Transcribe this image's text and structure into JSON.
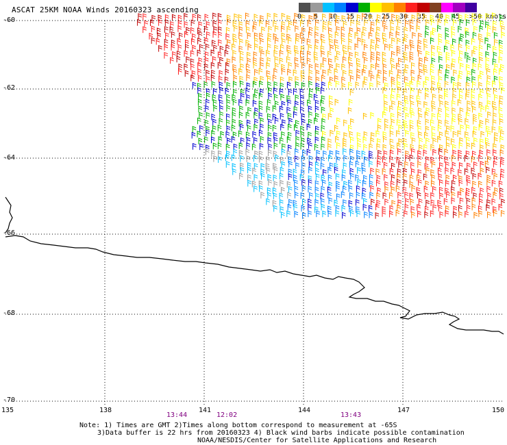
{
  "title": "ASCAT 25KM NOAA Winds 20160323 ascending",
  "legend": {
    "labels": [
      "0",
      "5",
      "10",
      "15",
      "20",
      "25",
      "30",
      "35",
      "40",
      "45",
      ">50 knots"
    ],
    "colors": [
      "#505050",
      "#9a9a9a",
      "#00c0ff",
      "#0080ff",
      "#0000d0",
      "#00b000",
      "#ffff00",
      "#ffc000",
      "#ff8000",
      "#ff2020",
      "#c00000",
      "#804020",
      "#ff00ff",
      "#a000c0",
      "#4000a0"
    ]
  },
  "axes": {
    "y_ticks": [
      "-60",
      "-62",
      "-64",
      "-66",
      "-68",
      "-70"
    ],
    "x_ticks": [
      "135",
      "138",
      "141",
      "144",
      "147",
      "150"
    ]
  },
  "times": [
    "13:44",
    "12:02",
    "13:43"
  ],
  "notes": [
    "Note: 1) Times are GMT 2)Times along bottom correspond to measurement at -65S",
    "3)Data buffer is 22 hrs from 20160323 4) Black wind barbs indicate possible contamination",
    "NOAA/NESDIS/Center for Satellite Applications and Research"
  ],
  "wind_field": [
    {
      "region": "north-west",
      "speed_knots": 35
    },
    {
      "region": "north",
      "speed_knots": 28
    },
    {
      "region": "north-east",
      "speed_knots": 22
    },
    {
      "region": "central-east",
      "speed_knots": 25
    },
    {
      "region": "central-west",
      "speed_knots": 18
    },
    {
      "region": "south-central",
      "speed_knots": 12
    },
    {
      "region": "south-east",
      "speed_knots": 33
    },
    {
      "region": "south-west",
      "speed_knots": 7
    }
  ]
}
